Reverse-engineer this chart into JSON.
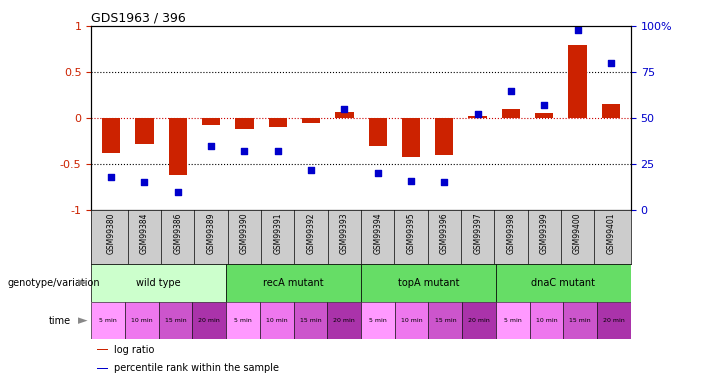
{
  "title": "GDS1963 / 396",
  "samples": [
    "GSM99380",
    "GSM99384",
    "GSM99386",
    "GSM99389",
    "GSM99390",
    "GSM99391",
    "GSM99392",
    "GSM99393",
    "GSM99394",
    "GSM99395",
    "GSM99396",
    "GSM99397",
    "GSM99398",
    "GSM99399",
    "GSM99400",
    "GSM99401"
  ],
  "log_ratio": [
    -0.38,
    -0.28,
    -0.62,
    -0.07,
    -0.12,
    -0.1,
    -0.05,
    0.07,
    -0.3,
    -0.42,
    -0.4,
    0.02,
    0.1,
    0.06,
    0.8,
    0.15
  ],
  "percentile": [
    18,
    15,
    10,
    35,
    32,
    32,
    22,
    55,
    20,
    16,
    15,
    52,
    65,
    57,
    98,
    80
  ],
  "genotype_groups": [
    {
      "label": "wild type",
      "start": 0,
      "end": 4,
      "color": "#ccffcc"
    },
    {
      "label": "recA mutant",
      "start": 4,
      "end": 8,
      "color": "#66dd66"
    },
    {
      "label": "topA mutant",
      "start": 8,
      "end": 12,
      "color": "#66dd66"
    },
    {
      "label": "dnaC mutant",
      "start": 12,
      "end": 16,
      "color": "#66dd66"
    }
  ],
  "time_labels": [
    "5 min",
    "10 min",
    "15 min",
    "20 min",
    "5 min",
    "10 min",
    "15 min",
    "20 min",
    "5 min",
    "10 min",
    "15 min",
    "20 min",
    "5 min",
    "10 min",
    "15 min",
    "20 min"
  ],
  "time_colors": [
    "#ff99ff",
    "#ee77ee",
    "#cc55cc",
    "#aa33aa",
    "#ff99ff",
    "#ee77ee",
    "#cc55cc",
    "#aa33aa",
    "#ff99ff",
    "#ee77ee",
    "#cc55cc",
    "#aa33aa",
    "#ff99ff",
    "#ee77ee",
    "#cc55cc",
    "#aa33aa"
  ],
  "bar_color": "#cc2200",
  "dot_color": "#0000cc",
  "ylim_left": [
    -1,
    1
  ],
  "ylim_right": [
    0,
    100
  ],
  "yticks_left": [
    -1,
    -0.5,
    0,
    0.5,
    1
  ],
  "yticks_left_labels": [
    "-1",
    "-0.5",
    "0",
    "0.5",
    "1"
  ],
  "yticks_right": [
    0,
    25,
    50,
    75,
    100
  ],
  "ylabel_right_labels": [
    "0",
    "25",
    "50",
    "75",
    "100%"
  ],
  "legend_items": [
    {
      "color": "#cc2200",
      "label": "log ratio"
    },
    {
      "color": "#0000cc",
      "label": "percentile rank within the sample"
    }
  ],
  "bar_width": 0.55,
  "sample_box_color": "#cccccc",
  "left_label_color": "#cc2200",
  "right_label_color": "#0000cc"
}
